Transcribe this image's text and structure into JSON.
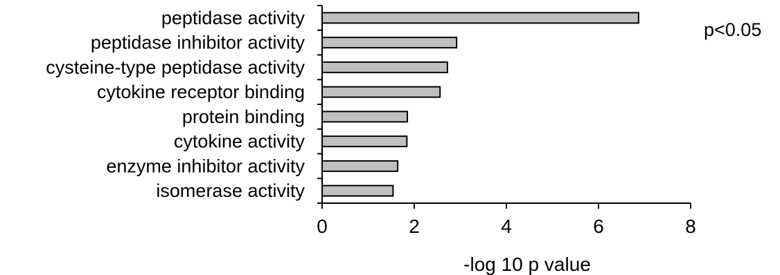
{
  "chart_data": {
    "type": "bar",
    "orientation": "horizontal",
    "categories": [
      "peptidase activity",
      "peptidase inhibitor activity",
      "cysteine-type peptidase activity",
      "cytokine receptor binding",
      "protein binding",
      "cytokine activity",
      "enzyme inhibitor activity",
      "isomerase activity"
    ],
    "values": [
      6.87,
      2.92,
      2.72,
      2.56,
      1.85,
      1.84,
      1.64,
      1.54
    ],
    "title": "",
    "xlabel": "-log 10 p value",
    "ylabel": "",
    "xlim": [
      0,
      8
    ],
    "xticks": [
      "0",
      "2",
      "4",
      "6",
      "8"
    ],
    "annotation": "p<0.05",
    "grid": false,
    "legend": "none",
    "bar_color": "#c0c0c0",
    "bar_edge_color": "#000000"
  }
}
